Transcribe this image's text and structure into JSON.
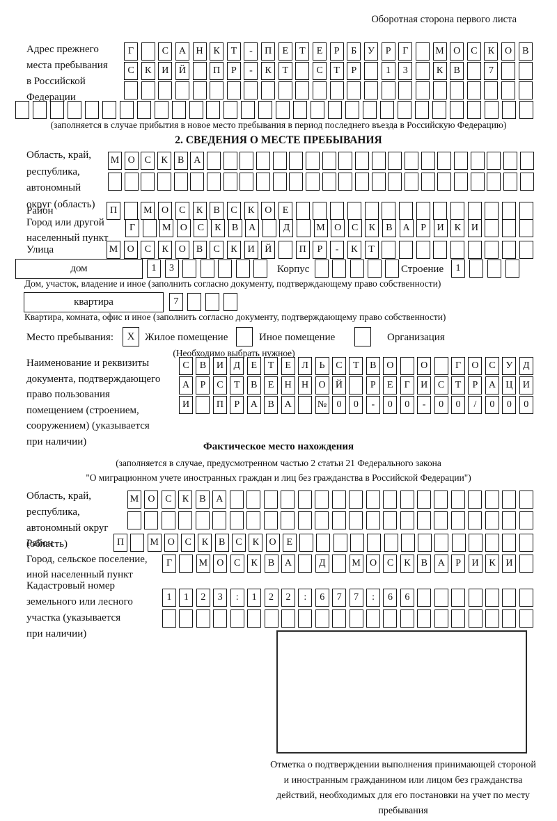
{
  "page": {
    "header_right": "Оборотная сторона первого листа"
  },
  "prev_address": {
    "label": "Адрес прежнего\nместа пребывания\nв Российской\nФедерации",
    "row1": "Г САНКТ-ПЕТЕРБУРГ МОСКОВ",
    "row2": "СКИЙ ПР-КТ СТР 13 КВ 7  ",
    "row3": "                        ",
    "row4": "                              ",
    "note": "(заполняется в случае прибытия в новое место пребывания в период последнего въезда в Российскую Федерацию)"
  },
  "section2": {
    "title": "2. СВЕДЕНИЯ О МЕСТЕ ПРЕБЫВАНИЯ",
    "oblast": {
      "label": "Область, край,\nреспублика,\nавтономный\nокруг (область)",
      "row1": "МОСКВА                    ",
      "row2": "                          "
    },
    "raion": {
      "label": "Район",
      "row": "П МОСКВСКОЕ              "
    },
    "gorod": {
      "label": "Город или другой\nнаселенный пункт",
      "row": "Г МОСКВА Д МОСКВАРИКИ   "
    },
    "ulitsa": {
      "label": "Улица",
      "row": "МОСКОВСКИЙ ПР-КТ         "
    },
    "dom": {
      "box_label": "дом",
      "cells": "13     ",
      "korpus_label": "Корпус",
      "korpus_cells": "     ",
      "stroenie_label": "Строение",
      "stroenie_cells": "1   ",
      "note": "Дом, участок, владение и иное (заполнить согласно документу, подтверждающему право собственности)"
    },
    "kvartira": {
      "box_label": "квартира",
      "cells": "7   ",
      "note": "Квартира, комната, офис и иное (заполнить согласно документу, подтверждающему право собственности)"
    },
    "mesto": {
      "label": "Место пребывания:",
      "opt1_mark": "X",
      "opt1": "Жилое помещение",
      "opt2_mark": "",
      "opt2": "Иное помещение",
      "opt3_mark": "",
      "opt3": "Организация",
      "note": "(Необходимо выбрать нужное)"
    },
    "document": {
      "label": "Наименование и реквизиты\nдокумента, подтверждающего\nправо пользования\nпомещением (строением,\nсооружением) (указывается\nпри наличии)",
      "row1": "СВИДЕТЕЛЬСТВО О ГОСУД",
      "row2": "АРСТВЕННОЙ РЕГИСТРАЦИ",
      "row3": "И ПРАВА №00-00-00/000"
    }
  },
  "fact": {
    "title": "Фактическое место нахождения",
    "note1": "(заполняется в случае, предусмотренном частью 2 статьи 21 Федерального закона",
    "note2": "\"О миграционном учете иностранных граждан и лиц без гражданства в Российской Федерации\")",
    "oblast": {
      "label": "Область, край,\nреспублика,\nавтономный округ\n(область)",
      "row1": "МОСКВА                  ",
      "row2": "                        "
    },
    "raion": {
      "label": "Район",
      "row": "П МОСКВСКОЕ              "
    },
    "gorod": {
      "label": "Город, сельское поселение,\nиной населенный пункт",
      "row": "Г МОСКВА Д МОСКВАРИКИ "
    },
    "kadastr": {
      "label": "Кадастровый номер\nземельного или лесного\nучастка (указывается\nпри наличии)",
      "row1": "1123:122:677:66       ",
      "row2": "                      "
    }
  },
  "stamp": {
    "caption": "Отметка о подтверждении выполнения принимающей стороной и иностранным гражданином или лицом без гражданства действий, необходимых для его постановки на учет по месту пребывания"
  }
}
